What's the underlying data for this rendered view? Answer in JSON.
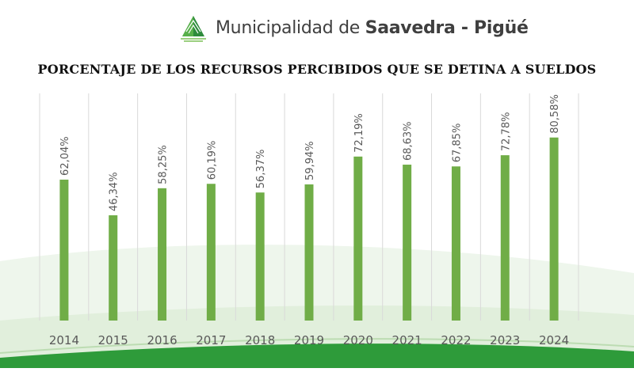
{
  "header": {
    "brand_regular": "Municipalidad de ",
    "brand_bold": "Saavedra - Pigüé",
    "logo_icon": "green-leaf-logo-icon"
  },
  "colors": {
    "bar": "#70ad47",
    "grid": "#d9d9d9",
    "label": "#595959",
    "wave_green": "#2e9b3a"
  },
  "chart_data": {
    "type": "bar",
    "title": "PORCENTAJE DE LOS RECURSOS PERCIBIDOS QUE SE DETINA A SUELDOS",
    "categories": [
      "2014",
      "2015",
      "2016",
      "2017",
      "2018",
      "2019",
      "2020",
      "2021",
      "2022",
      "2023",
      "2024"
    ],
    "values": [
      62.04,
      46.34,
      58.25,
      60.19,
      56.37,
      59.94,
      72.19,
      68.63,
      67.85,
      72.78,
      80.58
    ],
    "data_labels": [
      "62,04%",
      "46,34%",
      "58,25%",
      "60,19%",
      "56,37%",
      "59,94%",
      "72,19%",
      "68,63%",
      "67,85%",
      "72,78%",
      "80,58%"
    ],
    "xlabel": "",
    "ylabel": "",
    "ylim": [
      0,
      100
    ],
    "grid": "vertical",
    "legend": "none"
  }
}
